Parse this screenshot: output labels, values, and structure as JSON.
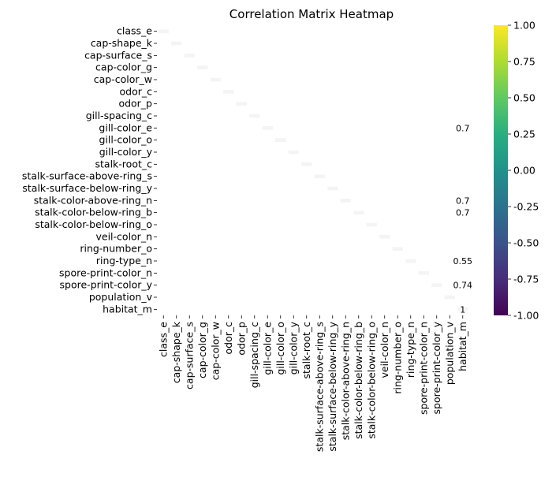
{
  "chart_data": {
    "type": "heatmap",
    "title": "Correlation Matrix Heatmap",
    "xlabel": "",
    "ylabel": "",
    "colormap": "viridis",
    "background": "#ffffff",
    "y_labels": [
      "class_e",
      "cap-shape_k",
      "cap-surface_s",
      "cap-color_g",
      "cap-color_w",
      "odor_c",
      "odor_p",
      "gill-spacing_c",
      "gill-color_e",
      "gill-color_o",
      "gill-color_y",
      "stalk-root_c",
      "stalk-surface-above-ring_s",
      "stalk-surface-below-ring_y",
      "stalk-color-above-ring_n",
      "stalk-color-below-ring_b",
      "stalk-color-below-ring_o",
      "veil-color_n",
      "ring-number_o",
      "ring-type_n",
      "spore-print-color_n",
      "spore-print-color_y",
      "population_v",
      "habitat_m"
    ],
    "x_labels": [
      "class_e",
      "cap-shape_k",
      "cap-surface_s",
      "cap-color_g",
      "cap-color_w",
      "odor_c",
      "odor_p",
      "gill-spacing_c",
      "gill-color_e",
      "gill-color_o",
      "gill-color_y",
      "stalk-root_c",
      "stalk-surface-above-ring_s",
      "stalk-surface-below-ring_y",
      "stalk-color-above-ring_n",
      "stalk-color-below-ring_b",
      "stalk-color-below-ring_o",
      "veil-color_n",
      "ring-number_o",
      "ring-type_n",
      "spore-print-color_n",
      "spore-print-color_y",
      "population_v",
      "habitat_m"
    ],
    "diagonal_value": 1,
    "annotations": [
      {
        "row": 8,
        "col": 23,
        "text": "0.7"
      },
      {
        "row": 14,
        "col": 23,
        "text": "0.7"
      },
      {
        "row": 15,
        "col": 23,
        "text": "0.7"
      },
      {
        "row": 19,
        "col": 23,
        "text": "0.55"
      },
      {
        "row": 21,
        "col": 23,
        "text": "0.74"
      },
      {
        "row": 23,
        "col": 23,
        "text": "1"
      }
    ],
    "colorbar": {
      "range": [
        -1.0,
        1.0
      ],
      "ticks": [
        "1.00",
        "0.75",
        "0.50",
        "0.25",
        "0.00",
        "-0.25",
        "-0.50",
        "-0.75",
        "-1.00"
      ]
    }
  }
}
